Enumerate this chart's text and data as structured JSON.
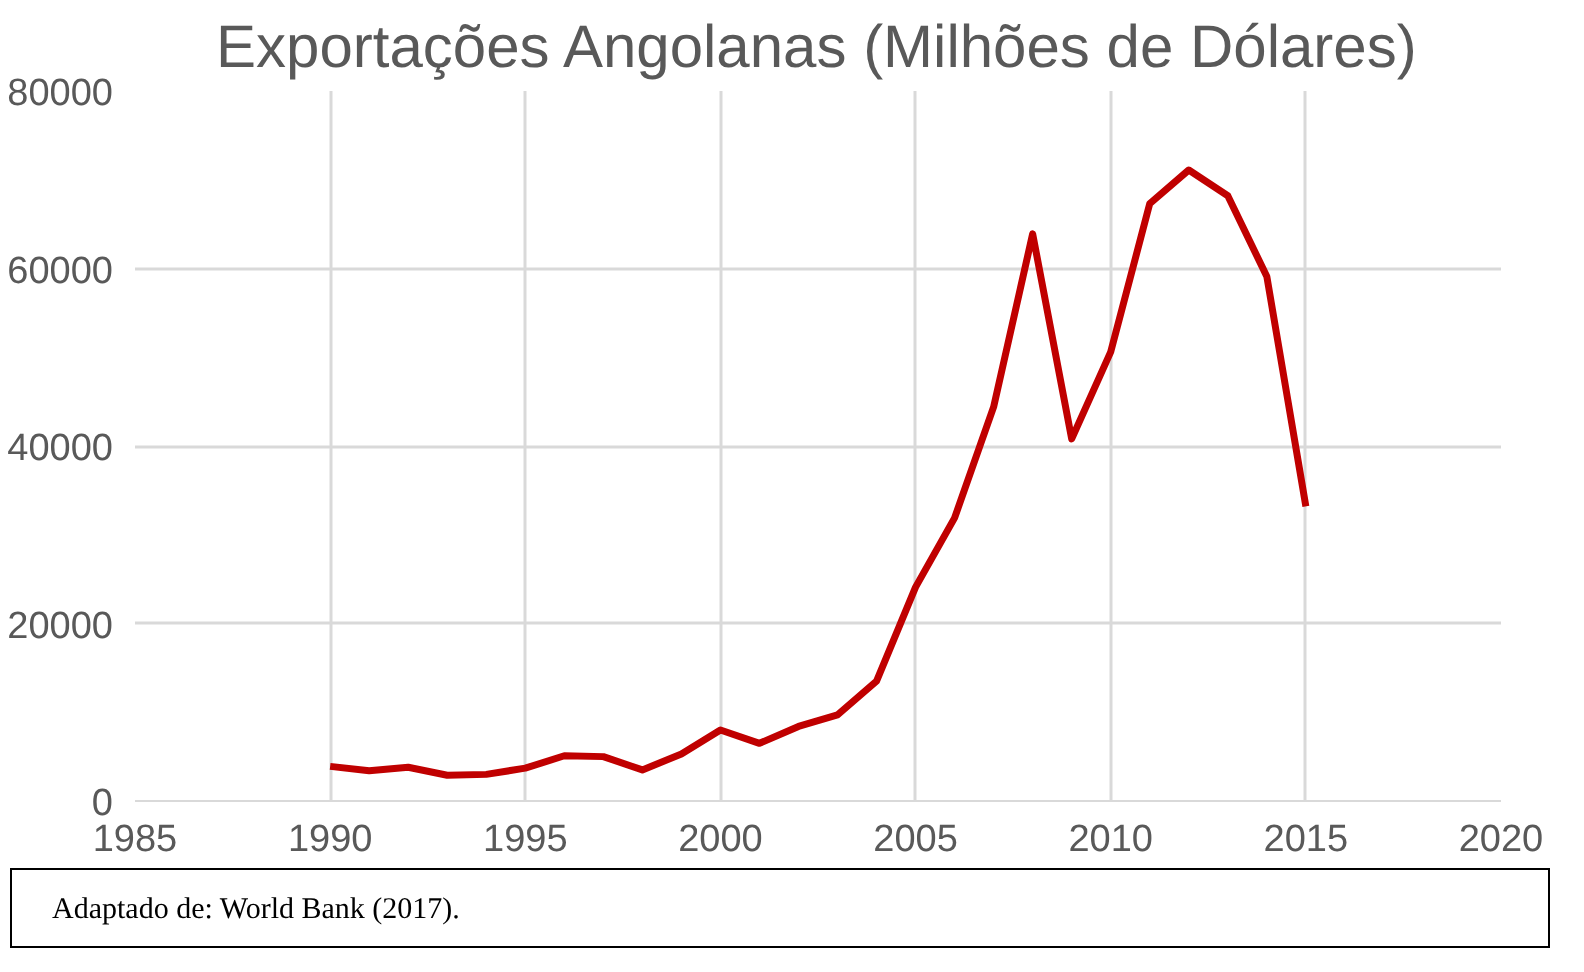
{
  "chart_data": {
    "type": "line",
    "title": "Exportações Angolanas (Milhões de Dólares)",
    "x": [
      1990,
      1991,
      1992,
      1993,
      1994,
      1995,
      1996,
      1997,
      1998,
      1999,
      2000,
      2001,
      2002,
      2003,
      2004,
      2005,
      2006,
      2007,
      2008,
      2009,
      2010,
      2011,
      2012,
      2013,
      2014,
      2015
    ],
    "series": [
      {
        "color": "#c00000",
        "values": [
          3900,
          3400,
          3800,
          2900,
          3000,
          3700,
          5100,
          5000,
          3500,
          5300,
          8000,
          6500,
          8400,
          9700,
          13500,
          24100,
          31900,
          44400,
          63900,
          40800,
          50600,
          67300,
          71100,
          68200,
          59100,
          33200
        ]
      }
    ],
    "xlim": [
      1985,
      2020
    ],
    "xticks": [
      1985,
      1990,
      1995,
      2000,
      2005,
      2010,
      2015,
      2020
    ],
    "ylim": [
      0,
      80000
    ],
    "yticks": [
      0,
      20000,
      40000,
      60000,
      80000
    ],
    "grid": true,
    "marker": "none",
    "line_style": "solid",
    "annotations": [
      "Adaptado de: World Bank (2017)."
    ]
  }
}
